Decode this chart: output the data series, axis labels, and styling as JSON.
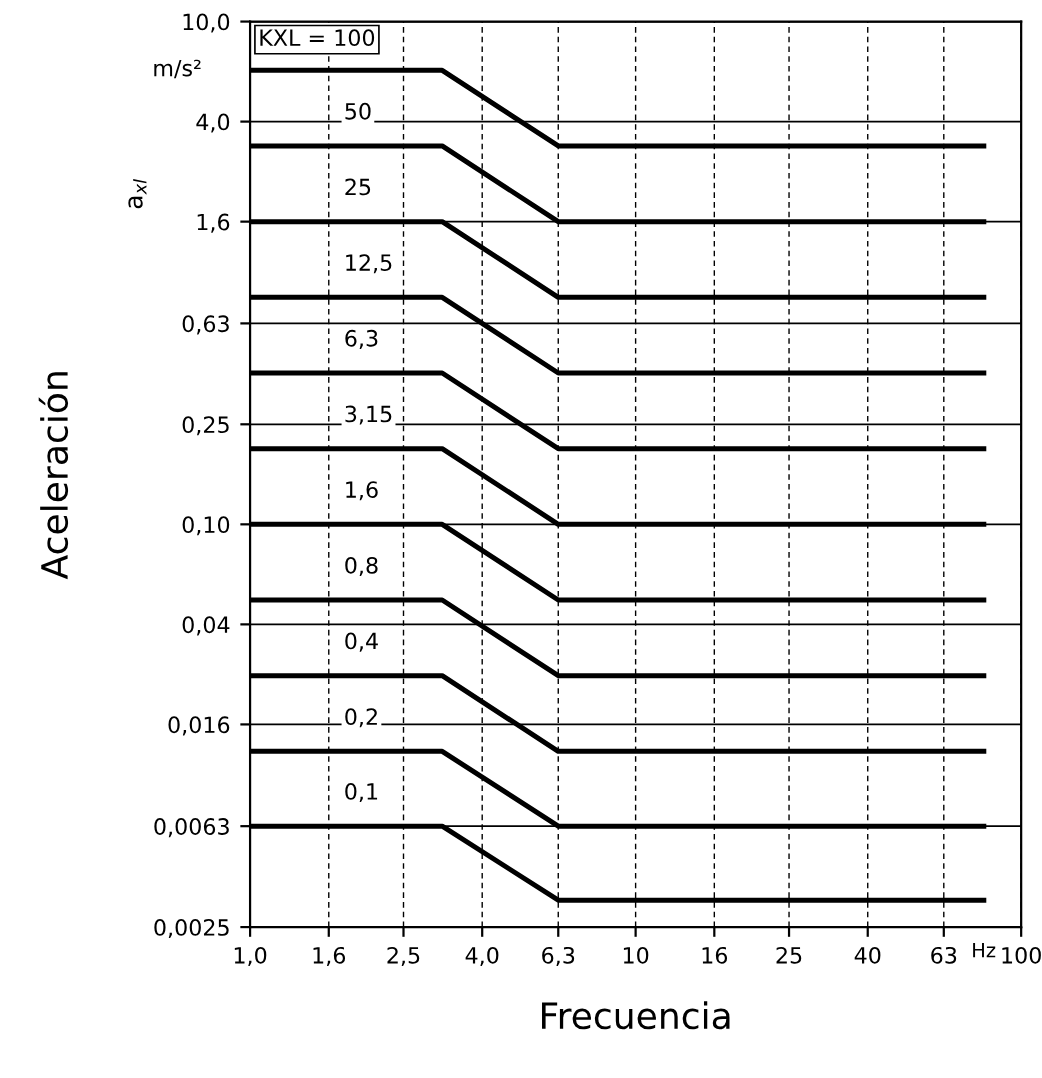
{
  "chart_data": {
    "type": "line",
    "xlabel": "Frecuencia",
    "ylabel": "Aceleración",
    "annotations": [
      "a$_{xl}$",
      "m/s²",
      "Hz"
    ],
    "log": "xy",
    "grid": true,
    "legend": false,
    "marker": "none",
    "line_style": "solid",
    "xlim": [
      1,
      100
    ],
    "ylim": [
      0.0025,
      10
    ],
    "xticks": [
      {
        "value": 1,
        "label": "1,0"
      },
      {
        "value": 1.6,
        "label": "1,6"
      },
      {
        "value": 2.5,
        "label": "2,5"
      },
      {
        "value": 4,
        "label": "4,0"
      },
      {
        "value": 6.3,
        "label": "6,3"
      },
      10,
      16,
      25,
      40,
      63,
      100
    ],
    "yticks": [
      {
        "value": 0.0025,
        "label": "0,0025"
      },
      {
        "value": 0.0063,
        "label": "0,0063"
      },
      {
        "value": 0.016,
        "label": "0,016"
      },
      {
        "value": 0.04,
        "label": "0,04"
      },
      {
        "value": 0.1,
        "label": "0,10"
      },
      {
        "value": 0.25,
        "label": "0,25"
      },
      {
        "value": 0.63,
        "label": "0,63"
      },
      {
        "value": 1.6,
        "label": "1,6"
      },
      {
        "value": 4,
        "label": "4,0"
      },
      {
        "value": 10,
        "label": "10,0"
      }
    ],
    "x": [
      1,
      3.15,
      6.3,
      80
    ],
    "series": [
      {
        "name": "KXL = 100",
        "color": "#000000",
        "values": [
          6.4,
          6.4,
          3.2,
          3.2
        ]
      },
      {
        "name": "50",
        "color": "#000000",
        "values": [
          3.2,
          3.2,
          1.6,
          1.6
        ]
      },
      {
        "name": "25",
        "color": "#000000",
        "values": [
          1.6,
          1.6,
          0.8,
          0.8
        ]
      },
      {
        "name": "12,5",
        "color": "#000000",
        "values": [
          0.8,
          0.8,
          0.4,
          0.4
        ]
      },
      {
        "name": "6,3",
        "color": "#000000",
        "values": [
          0.4,
          0.4,
          0.2,
          0.2
        ]
      },
      {
        "name": "3,15",
        "color": "#000000",
        "values": [
          0.2,
          0.2,
          0.1,
          0.1
        ]
      },
      {
        "name": "1,6",
        "color": "#000000",
        "values": [
          0.1,
          0.1,
          0.05,
          0.05
        ]
      },
      {
        "name": "0,8",
        "color": "#000000",
        "values": [
          0.05,
          0.05,
          0.025,
          0.025
        ]
      },
      {
        "name": "0,4",
        "color": "#000000",
        "values": [
          0.025,
          0.025,
          0.0125,
          0.0125
        ]
      },
      {
        "name": "0,2",
        "color": "#000000",
        "values": [
          0.0125,
          0.0125,
          0.0063,
          0.0063
        ]
      },
      {
        "name": "0,1",
        "color": "#000000",
        "values": [
          0.0063,
          0.0063,
          0.0032,
          0.0032
        ]
      }
    ]
  }
}
